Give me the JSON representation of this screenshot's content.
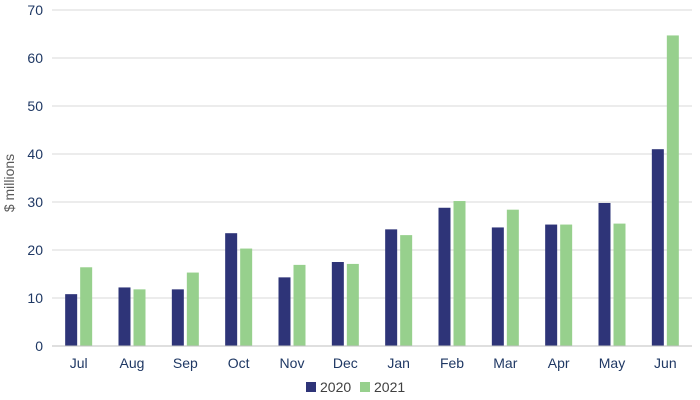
{
  "chart_data": {
    "type": "bar",
    "title": "",
    "xlabel": "",
    "ylabel": "$ millions",
    "categories": [
      "Jul",
      "Aug",
      "Sep",
      "Oct",
      "Nov",
      "Dec",
      "Jan",
      "Feb",
      "Mar",
      "Apr",
      "May",
      "Jun"
    ],
    "series": [
      {
        "name": "2020",
        "color": "#2e3478",
        "values": [
          10.8,
          12.2,
          11.8,
          23.5,
          14.3,
          17.5,
          24.3,
          28.8,
          24.7,
          25.3,
          29.8,
          41.0
        ]
      },
      {
        "name": "2021",
        "color": "#97d08d",
        "values": [
          16.4,
          11.8,
          15.3,
          20.3,
          16.9,
          17.1,
          23.1,
          30.2,
          28.4,
          25.3,
          25.5,
          64.7
        ]
      }
    ],
    "ylim": [
      0,
      70
    ],
    "yticks": [
      0,
      10,
      20,
      30,
      40,
      50,
      60,
      70
    ],
    "grid": true,
    "legend": "bottom-center"
  }
}
